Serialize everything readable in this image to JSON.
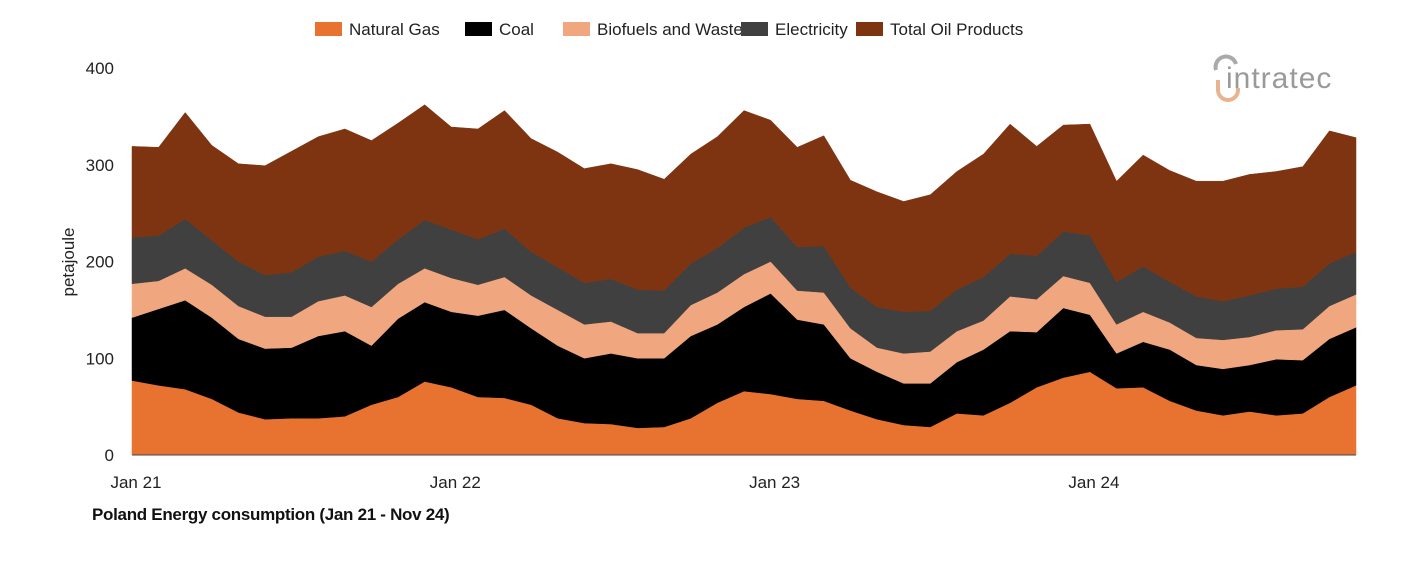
{
  "chart_data": {
    "type": "area",
    "stacked": true,
    "title": "Poland Energy consumption (Jan 21 - Nov 24)",
    "xlabel": "",
    "ylabel": "petajoule",
    "ylim": [
      0,
      400
    ],
    "yticks": [
      0,
      100,
      200,
      300,
      400
    ],
    "xtick_labels": [
      {
        "label": "Jan 21",
        "x": "2021-01"
      },
      {
        "label": "Jan 22",
        "x": "2022-01"
      },
      {
        "label": "Jan 23",
        "x": "2023-01"
      },
      {
        "label": "Jan 24",
        "x": "2024-01"
      }
    ],
    "grid": false,
    "legend_position": "top",
    "x": [
      "2021-01",
      "2021-02",
      "2021-03",
      "2021-04",
      "2021-05",
      "2021-06",
      "2021-07",
      "2021-08",
      "2021-09",
      "2021-10",
      "2021-11",
      "2021-12",
      "2022-01",
      "2022-02",
      "2022-03",
      "2022-04",
      "2022-05",
      "2022-06",
      "2022-07",
      "2022-08",
      "2022-09",
      "2022-10",
      "2022-11",
      "2022-12",
      "2023-01",
      "2023-02",
      "2023-03",
      "2023-04",
      "2023-05",
      "2023-06",
      "2023-07",
      "2023-08",
      "2023-09",
      "2023-10",
      "2023-11",
      "2023-12",
      "2024-01",
      "2024-02",
      "2024-03",
      "2024-04",
      "2024-05",
      "2024-06",
      "2024-07",
      "2024-08",
      "2024-09",
      "2024-10",
      "2024-11"
    ],
    "series": [
      {
        "name": "Natural Gas",
        "color": "#E8722F",
        "values": [
          77,
          72,
          68,
          58,
          44,
          37,
          38,
          38,
          40,
          52,
          60,
          76,
          70,
          60,
          59,
          52,
          38,
          33,
          32,
          28,
          29,
          38,
          54,
          66,
          63,
          58,
          56,
          46,
          37,
          31,
          29,
          43,
          41,
          54,
          70,
          80,
          86,
          69,
          70,
          56,
          46,
          41,
          45,
          41,
          43,
          60,
          72
        ]
      },
      {
        "name": "Coal",
        "color": "#000000",
        "values": [
          65,
          79,
          92,
          84,
          76,
          73,
          73,
          85,
          88,
          61,
          81,
          82,
          78,
          84,
          91,
          79,
          75,
          67,
          73,
          72,
          71,
          85,
          81,
          87,
          104,
          82,
          79,
          54,
          49,
          43,
          45,
          53,
          68,
          74,
          57,
          72,
          59,
          36,
          47,
          53,
          47,
          48,
          48,
          58,
          55,
          60,
          60
        ]
      },
      {
        "name": "Biofuels and Waste",
        "color": "#F0A77F",
        "values": [
          35,
          29,
          33,
          34,
          34,
          33,
          32,
          36,
          37,
          40,
          36,
          35,
          35,
          32,
          34,
          34,
          37,
          35,
          33,
          26,
          26,
          32,
          33,
          34,
          33,
          30,
          33,
          31,
          25,
          31,
          33,
          32,
          30,
          36,
          34,
          33,
          33,
          30,
          31,
          28,
          28,
          30,
          29,
          30,
          32,
          34,
          34
        ]
      },
      {
        "name": "Electricity",
        "color": "#404040",
        "values": [
          48,
          47,
          51,
          46,
          46,
          43,
          46,
          46,
          46,
          47,
          46,
          50,
          50,
          47,
          50,
          45,
          44,
          43,
          44,
          45,
          44,
          43,
          46,
          48,
          46,
          45,
          48,
          42,
          42,
          43,
          42,
          43,
          45,
          44,
          45,
          46,
          49,
          44,
          47,
          42,
          43,
          40,
          43,
          43,
          44,
          44,
          44
        ]
      },
      {
        "name": "Total Oil Products",
        "color": "#7E3410",
        "values": [
          94,
          91,
          110,
          98,
          101,
          113,
          125,
          124,
          126,
          125,
          120,
          119,
          106,
          114,
          122,
          117,
          119,
          118,
          119,
          124,
          115,
          113,
          115,
          121,
          100,
          103,
          114,
          111,
          119,
          114,
          120,
          122,
          127,
          134,
          113,
          110,
          115,
          104,
          115,
          115,
          119,
          124,
          125,
          121,
          124,
          137,
          118
        ]
      }
    ]
  },
  "logo": {
    "text": "intratec",
    "color": "#9a9a9a",
    "accent": "#E8B48F"
  }
}
